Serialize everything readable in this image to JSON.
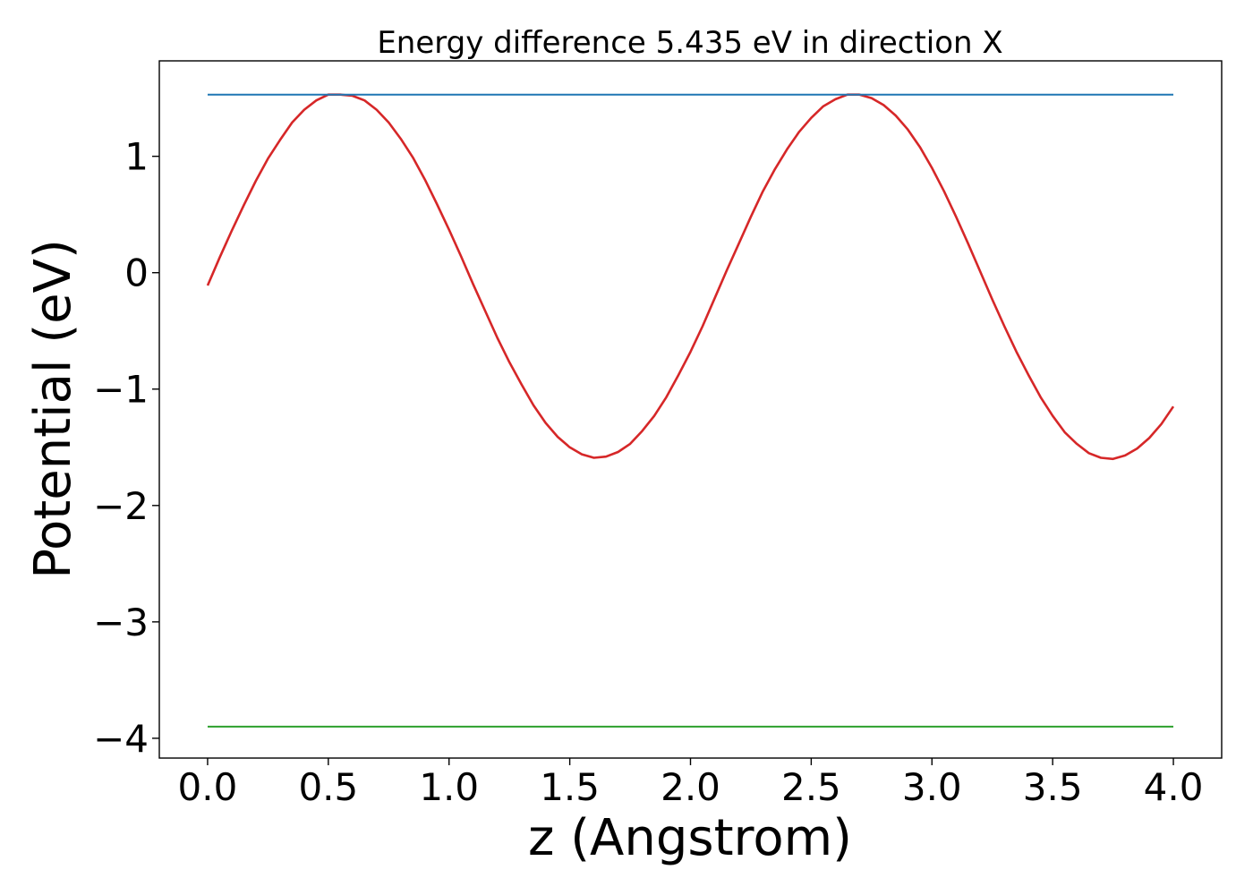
{
  "chart_data": {
    "type": "line",
    "title": "Energy difference 5.435 eV in direction X",
    "xlabel": "z (Angstrom)",
    "ylabel": "Potential (eV)",
    "xlim": [
      -0.2,
      4.2
    ],
    "ylim": [
      -4.17,
      1.82
    ],
    "x_ticks": [
      0.0,
      0.5,
      1.0,
      1.5,
      2.0,
      2.5,
      3.0,
      3.5,
      4.0
    ],
    "x_tick_labels": [
      "0.0",
      "0.5",
      "1.0",
      "1.5",
      "2.0",
      "2.5",
      "3.0",
      "3.5",
      "4.0"
    ],
    "y_ticks": [
      1,
      0,
      -1,
      -2,
      -3,
      -4
    ],
    "y_tick_labels": [
      "1",
      "0",
      "−1",
      "−2",
      "−3",
      "−4"
    ],
    "grid": false,
    "series": [
      {
        "color": "#d62728",
        "style": "solid",
        "x": [
          0.0,
          0.05,
          0.1,
          0.15,
          0.2,
          0.25,
          0.3,
          0.35,
          0.4,
          0.45,
          0.5,
          0.55,
          0.6,
          0.65,
          0.7,
          0.75,
          0.8,
          0.85,
          0.9,
          0.95,
          1.0,
          1.05,
          1.1,
          1.15,
          1.2,
          1.25,
          1.3,
          1.35,
          1.4,
          1.45,
          1.5,
          1.55,
          1.6,
          1.65,
          1.7,
          1.75,
          1.8,
          1.85,
          1.9,
          1.95,
          2.0,
          2.05,
          2.1,
          2.15,
          2.2,
          2.25,
          2.3,
          2.35,
          2.4,
          2.45,
          2.5,
          2.55,
          2.6,
          2.65,
          2.7,
          2.75,
          2.8,
          2.85,
          2.9,
          2.95,
          3.0,
          3.05,
          3.1,
          3.15,
          3.2,
          3.25,
          3.3,
          3.35,
          3.4,
          3.45,
          3.5,
          3.55,
          3.6,
          3.65,
          3.7,
          3.75,
          3.8,
          3.85,
          3.9,
          3.95,
          4.0
        ],
        "y": [
          -0.11,
          0.13,
          0.36,
          0.58,
          0.79,
          0.98,
          1.14,
          1.29,
          1.4,
          1.48,
          1.53,
          1.53,
          1.52,
          1.48,
          1.4,
          1.29,
          1.15,
          0.99,
          0.8,
          0.59,
          0.37,
          0.14,
          -0.1,
          -0.33,
          -0.56,
          -0.77,
          -0.96,
          -1.14,
          -1.29,
          -1.41,
          -1.5,
          -1.56,
          -1.59,
          -1.58,
          -1.54,
          -1.47,
          -1.36,
          -1.23,
          -1.07,
          -0.88,
          -0.68,
          -0.46,
          -0.22,
          0.02,
          0.25,
          0.48,
          0.7,
          0.89,
          1.06,
          1.21,
          1.33,
          1.43,
          1.49,
          1.53,
          1.53,
          1.5,
          1.44,
          1.35,
          1.23,
          1.08,
          0.9,
          0.7,
          0.48,
          0.25,
          0.01,
          -0.23,
          -0.46,
          -0.68,
          -0.88,
          -1.07,
          -1.23,
          -1.37,
          -1.47,
          -1.55,
          -1.59,
          -1.6,
          -1.57,
          -1.51,
          -1.42,
          -1.3,
          -1.15
        ]
      },
      {
        "color": "#1f77b4",
        "style": "solid",
        "x": [
          0.0,
          4.0
        ],
        "y": [
          1.53,
          1.53
        ]
      },
      {
        "color": "#2ca02c",
        "style": "solid",
        "x": [
          0.0,
          4.0
        ],
        "y": [
          -3.9,
          -3.9
        ]
      }
    ]
  }
}
